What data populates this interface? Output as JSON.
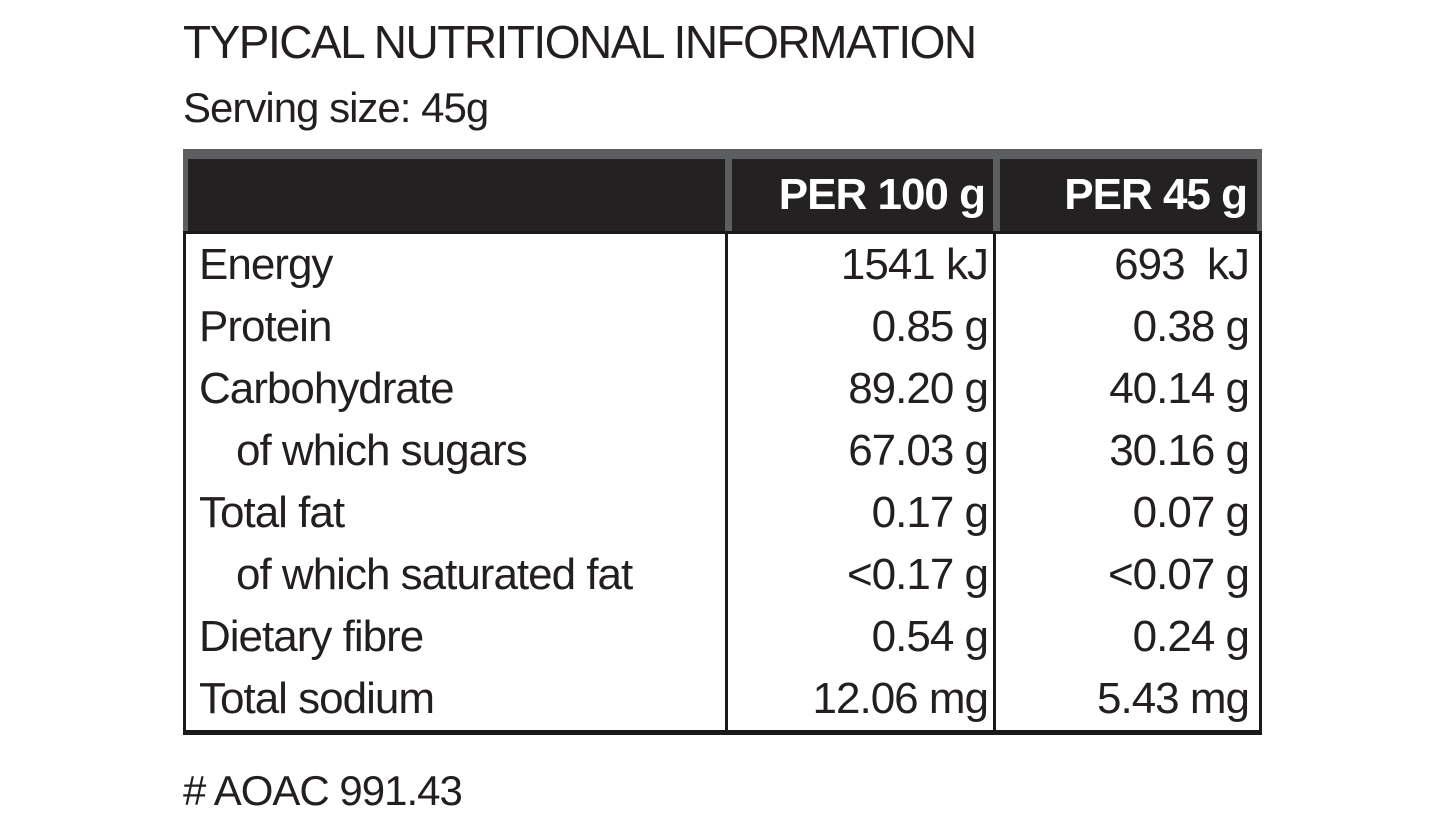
{
  "page": {
    "title": "TYPICAL NUTRITIONAL INFORMATION",
    "serving_size": "Serving size: 45g",
    "footnote": "# AOAC 991.43"
  },
  "table": {
    "columns": [
      "",
      "PER 100 g",
      "PER 45 g"
    ],
    "rows": [
      {
        "label": "Energy",
        "per_100g": "1541 kJ",
        "per_45g": "693  kJ",
        "indent": false
      },
      {
        "label": "Protein",
        "per_100g": "0.85 g",
        "per_45g": "0.38 g",
        "indent": false
      },
      {
        "label": "Carbohydrate",
        "per_100g": "89.20 g",
        "per_45g": "40.14 g",
        "indent": false
      },
      {
        "label": "of which sugars",
        "per_100g": "67.03 g",
        "per_45g": "30.16 g",
        "indent": true
      },
      {
        "label": "Total fat",
        "per_100g": "0.17 g",
        "per_45g": "0.07 g",
        "indent": false
      },
      {
        "label": "of which saturated fat",
        "per_100g": "<0.17 g",
        "per_45g": "<0.07 g",
        "indent": true
      },
      {
        "label": "Dietary fibre",
        "per_100g": "0.54 g",
        "per_45g": "0.24 g",
        "indent": false
      },
      {
        "label": "Total sodium",
        "per_100g": "12.06 mg",
        "per_45g": "5.43 mg",
        "indent": false
      }
    ]
  },
  "colors": {
    "header_bg": "#242122",
    "header_accent": "#5c5e60",
    "header_text": "#ffffff",
    "body_text": "#231f20",
    "border": "#1c191a",
    "background": "#ffffff"
  }
}
